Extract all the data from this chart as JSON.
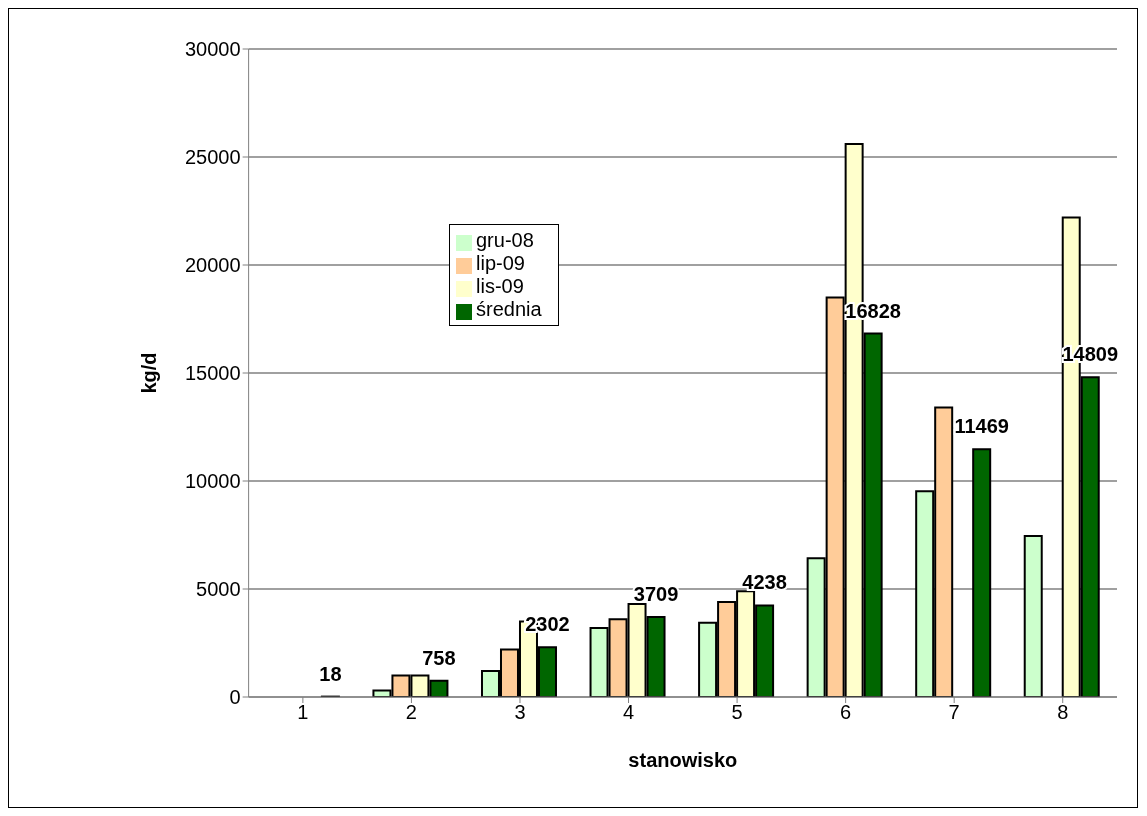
{
  "chart_data": {
    "type": "bar",
    "xlabel": "stanowisko",
    "ylabel": "kg/d",
    "categories": [
      "1",
      "2",
      "3",
      "4",
      "5",
      "6",
      "7",
      "8"
    ],
    "series": [
      {
        "name": "gru-08",
        "color": "#ccffcc",
        "values": [
          null,
          300,
          1200,
          3200,
          3440,
          6420,
          9530,
          7450
        ]
      },
      {
        "name": "lip-09",
        "color": "#ffcc99",
        "values": [
          null,
          1000,
          2200,
          3600,
          4400,
          18500,
          13400,
          null
        ]
      },
      {
        "name": "lis-09",
        "color": "#ffffcc",
        "values": [
          null,
          1000,
          3500,
          4300,
          4900,
          25600,
          null,
          22200
        ]
      },
      {
        "name": "średnia",
        "color": "#006600",
        "values": [
          18,
          758,
          2302,
          3709,
          4238,
          16828,
          11469,
          14809
        ],
        "value_labels": [
          "18",
          "758",
          "2302",
          "3709",
          "4238",
          "16828",
          "11469",
          "14809"
        ]
      }
    ],
    "ylim": [
      0,
      30000
    ],
    "yticks": [
      0,
      5000,
      10000,
      15000,
      20000,
      25000,
      30000
    ],
    "grid": "y",
    "legend": "left"
  }
}
